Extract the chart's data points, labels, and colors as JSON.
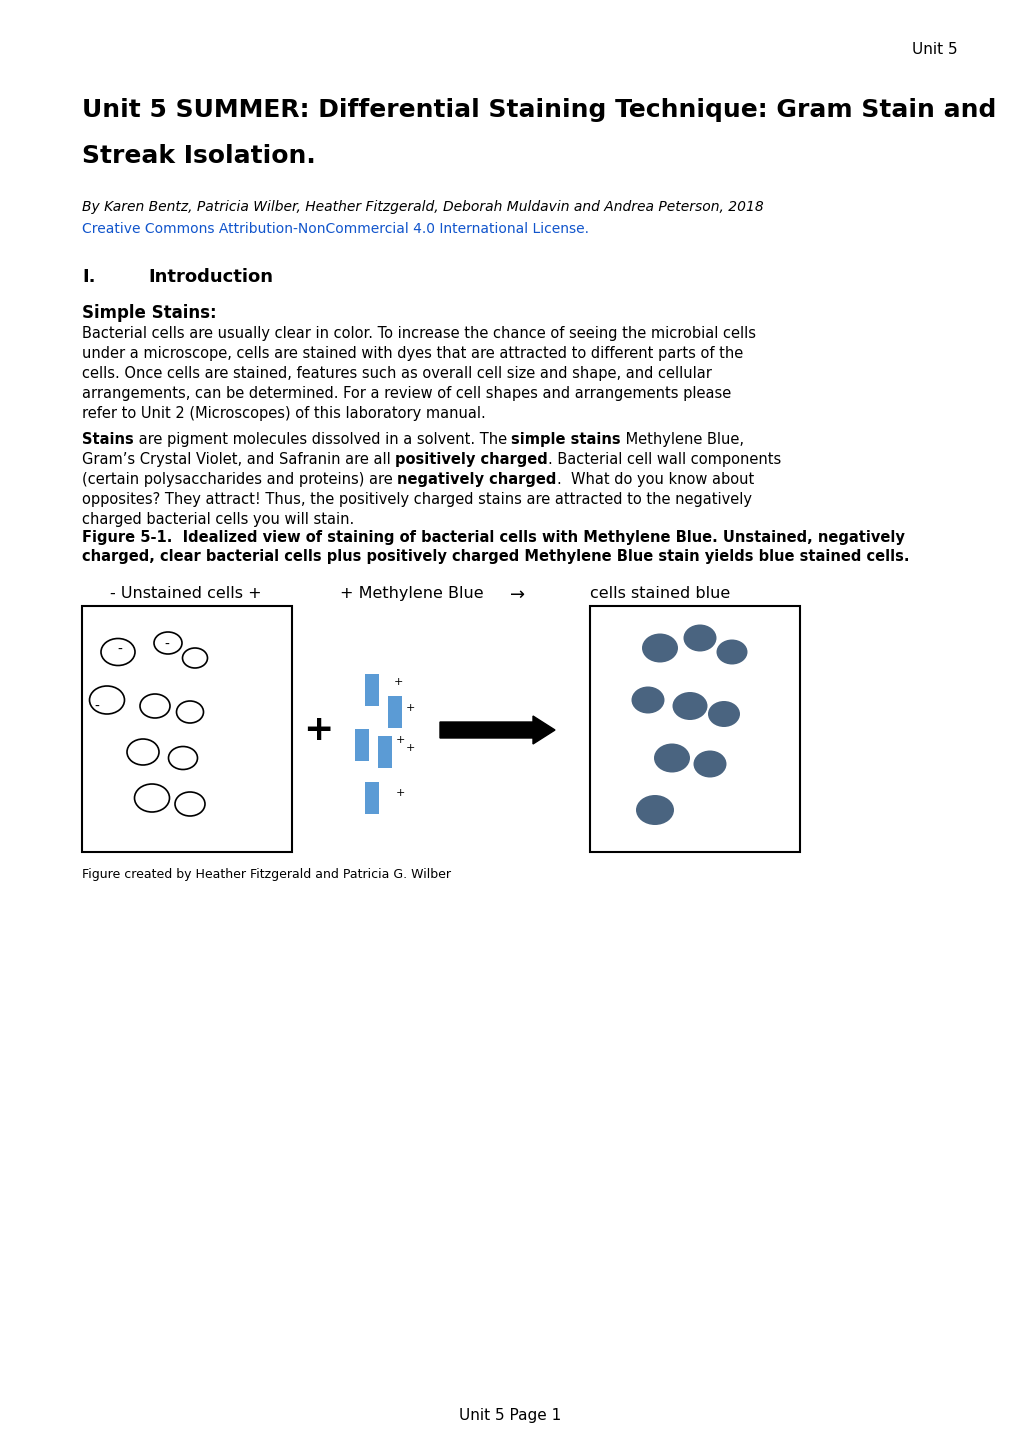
{
  "page_header": "Unit 5",
  "main_title_line1": "Unit 5 SUMMER: Differential Staining Technique: Gram Stain and",
  "main_title_line2": "Streak Isolation.",
  "authors": "By Karen Bentz, Patricia Wilber, Heather Fitzgerald, Deborah Muldavin and Andrea Peterson, 2018",
  "license_text": "Creative Commons Attribution-NonCommercial 4.0 International License.",
  "license_color": "#1155CC",
  "section_I": "I.",
  "section_I_title": "Introduction",
  "simple_stains_header": "Simple Stains:",
  "para1_lines": [
    "Bacterial cells are usually clear in color. To increase the chance of seeing the microbial cells",
    "under a microscope, cells are stained with dyes that are attracted to different parts of the",
    "cells. Once cells are stained, features such as overall cell size and shape, and cellular",
    "arrangements, can be determined. For a review of cell shapes and arrangements please",
    "refer to Unit 2 (Microscopes) of this laboratory manual."
  ],
  "para2_lines": [
    [
      [
        "Stains",
        true
      ],
      [
        " are pigment molecules dissolved in a solvent. The ",
        false
      ],
      [
        "simple stains",
        true
      ],
      [
        " Methylene Blue,",
        false
      ]
    ],
    [
      [
        "Gram’s Crystal Violet, and Safranin are all ",
        false
      ],
      [
        "positively charged",
        true
      ],
      [
        ". Bacterial cell wall components",
        false
      ]
    ],
    [
      [
        "(certain polysaccharides and proteins) are ",
        false
      ],
      [
        "negatively charged",
        true
      ],
      [
        ".  What do you know about",
        false
      ]
    ],
    [
      [
        "opposites? They attract! Thus, the positively charged stains are attracted to the negatively",
        false
      ]
    ],
    [
      [
        "charged bacterial cells you will stain.",
        false
      ]
    ]
  ],
  "figure_caption_lines": [
    "Figure 5-1.  Idealized view of staining of bacterial cells with Methylene Blue. Unstained, negatively",
    "charged, clear bacterial cells plus positively charged Methylene Blue stain yields blue stained cells."
  ],
  "diagram_label_left": "- Unstained cells +",
  "diagram_label_middle": "+ Methylene Blue",
  "diagram_label_arrow": "→",
  "diagram_label_right": "cells stained blue",
  "figure_credit": "Figure created by Heather Fitzgerald and Patricia G. Wilber",
  "page_footer": "Unit 5 Page 1",
  "unstained_border": "#000000",
  "stained_color": "#4a6480",
  "methylene_blue_color": "#5b9bd5",
  "background_color": "#ffffff",
  "text_color": "#000000"
}
